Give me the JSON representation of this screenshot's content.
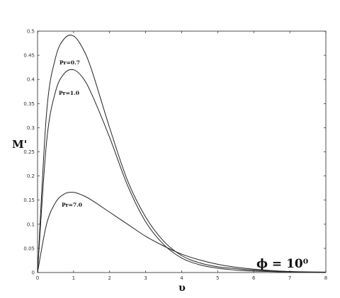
{
  "chart_data": {
    "type": "line",
    "xlabel": "υ",
    "ylabel": "M'",
    "xlim": [
      0,
      8
    ],
    "ylim": [
      0,
      0.5
    ],
    "xticks": [
      0,
      1,
      2,
      3,
      4,
      5,
      6,
      7,
      8
    ],
    "yticks": [
      0,
      0.05,
      0.1,
      0.15,
      0.2,
      0.25,
      0.3,
      0.35,
      0.4,
      0.45,
      0.5
    ],
    "xtick_labels": [
      "0",
      "1",
      "2",
      "3",
      "4",
      "5",
      "6",
      "7",
      "8"
    ],
    "ytick_labels": [
      "0",
      "0.05",
      "0.1",
      "0.15",
      "0.2",
      "0.25",
      "0.3",
      "0.35",
      "0.4",
      "0.45",
      "0.5"
    ],
    "grid": false,
    "annotation": "ϕ = 10⁰",
    "series": [
      {
        "name": "Pr=0.7",
        "x": [
          0,
          0.25,
          0.5,
          0.75,
          1.0,
          1.25,
          1.5,
          2.0,
          2.5,
          3.0,
          3.5,
          4.0,
          4.5,
          5.0,
          5.5,
          6.0,
          7.0,
          8.0
        ],
        "y": [
          0,
          0.33,
          0.445,
          0.485,
          0.49,
          0.465,
          0.42,
          0.3,
          0.19,
          0.115,
          0.065,
          0.035,
          0.02,
          0.012,
          0.008,
          0.005,
          0.002,
          0.001
        ]
      },
      {
        "name": "Pr=1.0",
        "x": [
          0,
          0.25,
          0.5,
          0.75,
          1.0,
          1.25,
          1.5,
          2.0,
          2.5,
          3.0,
          3.5,
          4.0,
          4.5,
          5.0,
          5.5,
          6.0,
          7.0,
          8.0
        ],
        "y": [
          0,
          0.27,
          0.375,
          0.413,
          0.42,
          0.404,
          0.37,
          0.28,
          0.18,
          0.105,
          0.058,
          0.03,
          0.016,
          0.009,
          0.005,
          0.003,
          0.001,
          0.0
        ]
      },
      {
        "name": "Pr=7.0",
        "x": [
          0,
          0.25,
          0.5,
          0.75,
          1.0,
          1.25,
          1.5,
          2.0,
          2.5,
          3.0,
          3.5,
          4.0,
          4.5,
          5.0,
          5.5,
          6.0,
          6.5,
          7.0,
          8.0
        ],
        "y": [
          0,
          0.1,
          0.145,
          0.163,
          0.166,
          0.16,
          0.15,
          0.125,
          0.1,
          0.075,
          0.055,
          0.038,
          0.026,
          0.017,
          0.011,
          0.007,
          0.004,
          0.002,
          0.0
        ]
      }
    ]
  }
}
